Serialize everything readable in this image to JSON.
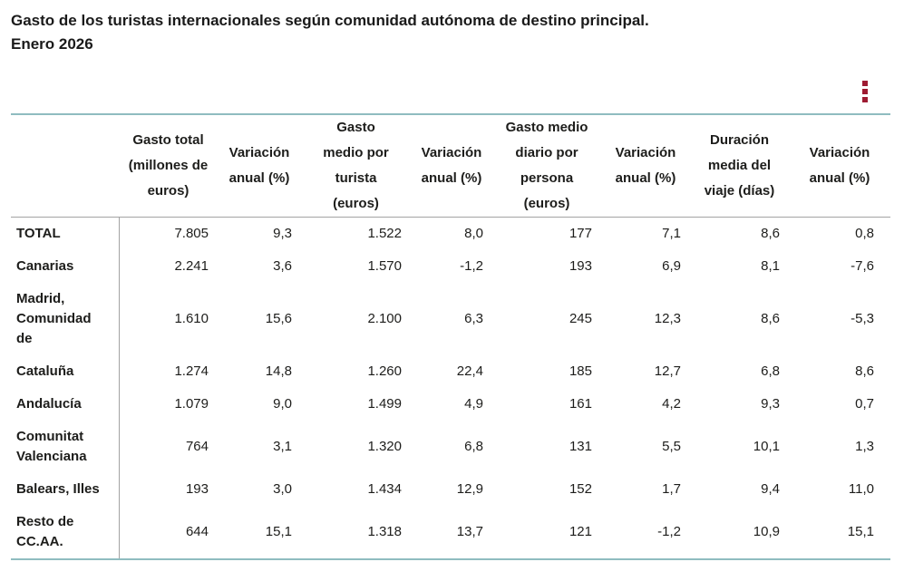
{
  "header": {
    "title_lines": [
      "Gasto de los turistas internacionales según comunidad autónoma de destino principal.",
      "Enero 2026"
    ]
  },
  "icons": {
    "context_menu": "kebab-vertical-dots"
  },
  "colors": {
    "accent": "#9e1b32",
    "table_border_teal": "#8fbcc0",
    "table_border_gray": "#a3a3a3"
  },
  "table": {
    "columns": [
      {
        "label": ""
      },
      {
        "label": [
          "Gasto total",
          "(millones de",
          "euros)"
        ]
      },
      {
        "label": [
          "Variación",
          "anual (%)"
        ]
      },
      {
        "label": [
          "Gasto",
          "medio por",
          "turista",
          "(euros)"
        ]
      },
      {
        "label": [
          "Variación",
          "anual (%)"
        ]
      },
      {
        "label": [
          "Gasto medio",
          "diario por",
          "persona",
          "(euros)"
        ]
      },
      {
        "label": [
          "Variación",
          "anual (%)"
        ]
      },
      {
        "label": [
          "Duración",
          "media del",
          "viaje (días)"
        ]
      },
      {
        "label": [
          "Variación",
          "anual (%)"
        ]
      }
    ],
    "rows": [
      {
        "label": "TOTAL",
        "values": [
          "7.805",
          "9,3",
          "1.522",
          "8,0",
          "177",
          "7,1",
          "8,6",
          "0,8"
        ]
      },
      {
        "label": "Canarias",
        "values": [
          "2.241",
          "3,6",
          "1.570",
          "-1,2",
          "193",
          "6,9",
          "8,1",
          "-7,6"
        ]
      },
      {
        "label": [
          "Madrid,",
          "Comunidad",
          "de"
        ],
        "values": [
          "1.610",
          "15,6",
          "2.100",
          "6,3",
          "245",
          "12,3",
          "8,6",
          "-5,3"
        ]
      },
      {
        "label": "Cataluña",
        "values": [
          "1.274",
          "14,8",
          "1.260",
          "22,4",
          "185",
          "12,7",
          "6,8",
          "8,6"
        ]
      },
      {
        "label": "Andalucía",
        "values": [
          "1.079",
          "9,0",
          "1.499",
          "4,9",
          "161",
          "4,2",
          "9,3",
          "0,7"
        ]
      },
      {
        "label": [
          "Comunitat",
          "Valenciana"
        ],
        "values": [
          "764",
          "3,1",
          "1.320",
          "6,8",
          "131",
          "5,5",
          "10,1",
          "1,3"
        ]
      },
      {
        "label": "Balears, Illes",
        "values": [
          "193",
          "3,0",
          "1.434",
          "12,9",
          "152",
          "1,7",
          "9,4",
          "11,0"
        ]
      },
      {
        "label": [
          "Resto de",
          "CC.AA."
        ],
        "values": [
          "644",
          "15,1",
          "1.318",
          "13,7",
          "121",
          "-1,2",
          "10,9",
          "15,1"
        ]
      }
    ]
  }
}
